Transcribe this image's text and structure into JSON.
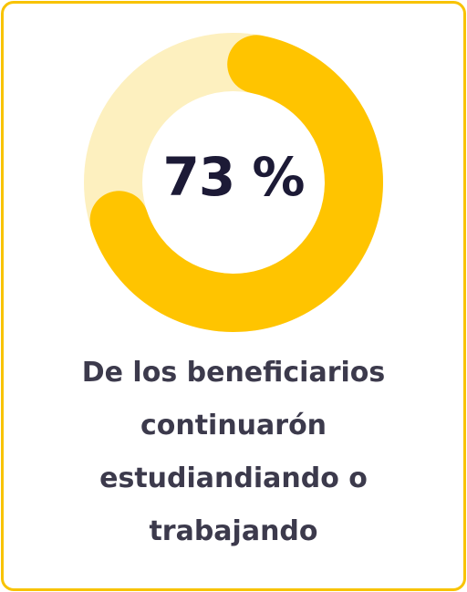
{
  "stat": {
    "percent_label": "73 %",
    "fraction": 0.73
  },
  "caption": "De los beneficiarios continuarón estudiandiando o trabajando",
  "colors": {
    "border": "#f8c300",
    "ring_fill": "#ffc400",
    "ring_track": "#fdf0bf",
    "percent_text": "#1c1a36",
    "caption_text": "#3c3a4c"
  }
}
